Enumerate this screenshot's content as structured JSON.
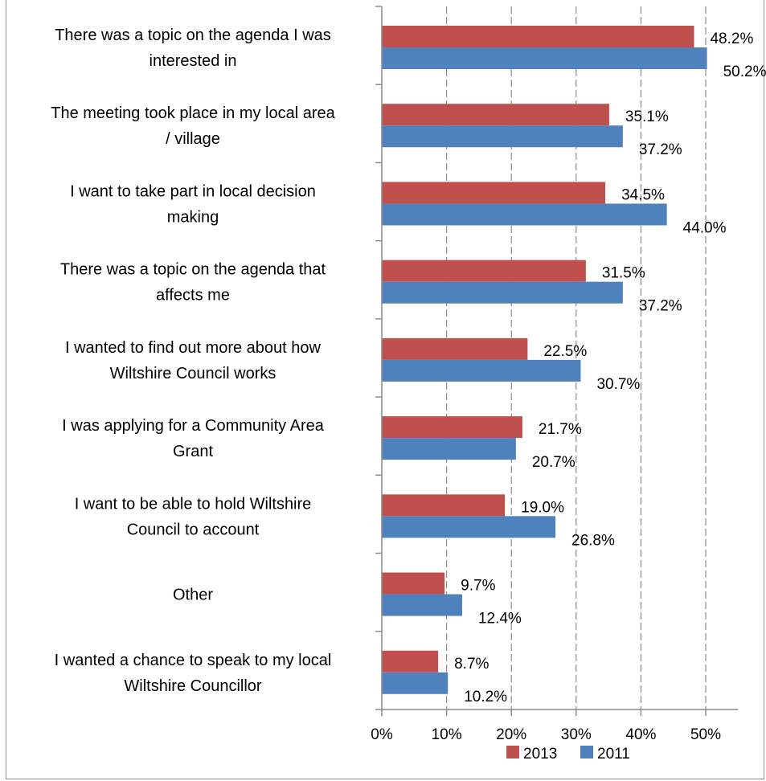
{
  "chart_data": {
    "type": "bar",
    "orientation": "horizontal",
    "categories": [
      [
        "There was a topic on the agenda I was",
        "interested in"
      ],
      [
        "The meeting took place in my local area",
        "/ village"
      ],
      [
        "I want to take part in local decision",
        "making"
      ],
      [
        "There was a topic on the agenda that",
        "affects me"
      ],
      [
        "I wanted to find out more about how",
        "Wiltshire Council works"
      ],
      [
        "I was applying for a Community Area",
        "Grant"
      ],
      [
        "I want to be able to hold Wiltshire",
        "Council to account"
      ],
      [
        "Other"
      ],
      [
        "I wanted a chance to speak to my local",
        "Wiltshire Councillor"
      ]
    ],
    "series": [
      {
        "name": "2013",
        "color": "#c0504d",
        "values": [
          48.2,
          35.1,
          34.5,
          31.5,
          22.5,
          21.7,
          19.0,
          9.7,
          8.7
        ],
        "labels": [
          "48.2%",
          "35.1%",
          "34.5%",
          "31.5%",
          "22.5%",
          "21.7%",
          "19.0%",
          "9.7%",
          "8.7%"
        ]
      },
      {
        "name": "2011",
        "color": "#4f81bd",
        "values": [
          50.2,
          37.2,
          44.0,
          37.2,
          30.7,
          20.7,
          26.8,
          12.4,
          10.2
        ],
        "labels": [
          "50.2%",
          "37.2%",
          "44.0%",
          "37.2%",
          "30.7%",
          "20.7%",
          "26.8%",
          "12.4%",
          "10.2%"
        ]
      }
    ],
    "xlim": [
      0,
      50
    ],
    "x_ticks": [
      "0%",
      "10%",
      "20%",
      "30%",
      "40%",
      "50%"
    ],
    "grid": "vertical dashed",
    "legend_position": "bottom"
  }
}
